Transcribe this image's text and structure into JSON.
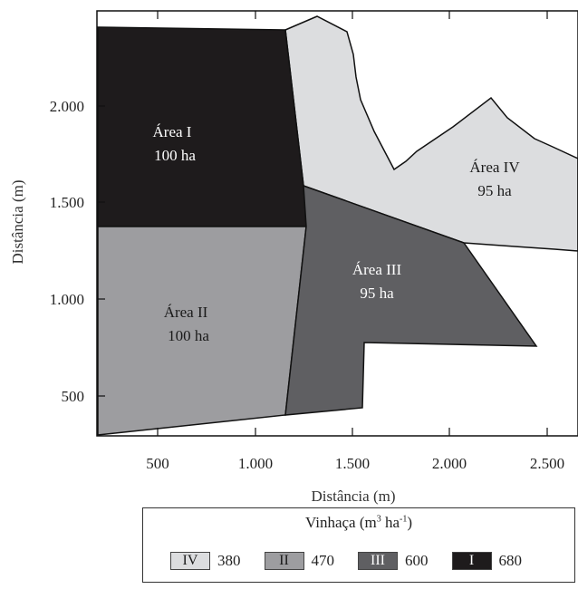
{
  "axes": {
    "xlabel": "Distância (m)",
    "ylabel": "Distância (m)",
    "x_ticks": [
      "500",
      "1.000",
      "1.500",
      "2.000",
      "2.500"
    ],
    "y_ticks": [
      "500",
      "1.000",
      "1.500",
      "2.000"
    ]
  },
  "areas": [
    {
      "id": "I",
      "name": "Área I",
      "size": "100 ha",
      "color": "#1e1b1c",
      "text_color": "#ffffff"
    },
    {
      "id": "II",
      "name": "Área II",
      "size": "100 ha",
      "color": "#9d9da0",
      "text_color": "#1a1a1a"
    },
    {
      "id": "III",
      "name": "Área III",
      "size": "95 ha",
      "color": "#5f5f62",
      "text_color": "#ffffff"
    },
    {
      "id": "IV",
      "name": "Área IV",
      "size": "95 ha",
      "color": "#dcdddf",
      "text_color": "#1a1a1a"
    }
  ],
  "legend": {
    "title_main": "Vinhaça (m",
    "title_sup1": "3",
    "title_mid": " ha",
    "title_sup2": "-1",
    "title_end": ")",
    "items": [
      {
        "code": "IV",
        "value": "380",
        "color": "#dcdddf",
        "text_color": "#1a1a1a"
      },
      {
        "code": "II",
        "value": "470",
        "color": "#9d9da0",
        "text_color": "#1a1a1a"
      },
      {
        "code": "III",
        "value": "600",
        "color": "#5f5f62",
        "text_color": "#ffffff"
      },
      {
        "code": "I",
        "value": "680",
        "color": "#1e1b1c",
        "text_color": "#ffffff"
      }
    ]
  }
}
